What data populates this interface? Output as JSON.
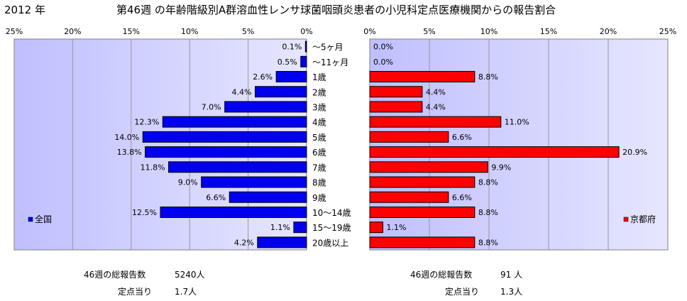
{
  "header": {
    "year": "2012 年",
    "title": "第46週 の年齢階級別A群溶血性レンサ球菌咽頭炎患者の小児科定点医療機関からの報告割合"
  },
  "chart_data": {
    "type": "bar",
    "orientation": "horizontal",
    "categories": [
      "〜5ヶ月",
      "〜11ヶ月",
      "1歳",
      "2歳",
      "3歳",
      "4歳",
      "5歳",
      "6歳",
      "7歳",
      "8歳",
      "9歳",
      "10〜14歳",
      "15〜19歳",
      "20歳以上"
    ],
    "xlim": [
      0,
      25
    ],
    "tick_labels": [
      "0%",
      "5%",
      "10%",
      "15%",
      "20%",
      "25%"
    ],
    "grid": true,
    "series": [
      {
        "name": "全国",
        "color": "#0000ee",
        "side": "left",
        "legend_position": "bottom-left",
        "values": [
          0.1,
          0.5,
          2.6,
          4.4,
          7.0,
          12.3,
          14.0,
          13.8,
          11.8,
          9.0,
          6.6,
          12.5,
          1.1,
          4.2
        ],
        "labels": [
          "0.1%",
          "0.5%",
          "2.6%",
          "4.4%",
          "7.0%",
          "12.3%",
          "14.0%",
          "13.8%",
          "11.8%",
          "9.0%",
          "6.6%",
          "12.5%",
          "1.1%",
          "4.2%"
        ]
      },
      {
        "name": "京都府",
        "color": "#ff0000",
        "side": "right",
        "legend_position": "bottom-right",
        "values": [
          0.0,
          0.0,
          8.8,
          4.4,
          4.4,
          11.0,
          6.6,
          20.9,
          9.9,
          8.8,
          6.6,
          8.8,
          1.1,
          8.8
        ],
        "labels": [
          "0.0%",
          "0.0%",
          "8.8%",
          "4.4%",
          "4.4%",
          "11.0%",
          "6.6%",
          "20.9%",
          "9.9%",
          "8.8%",
          "6.6%",
          "8.8%",
          "1.1%",
          "8.8%"
        ]
      }
    ]
  },
  "footer": {
    "left": {
      "total_label": "46週の総報告数",
      "total_value": "5240人",
      "per_label": "定点当り",
      "per_value": "1.7人"
    },
    "right": {
      "total_label": "46週の総報告数",
      "total_value": "91 人",
      "per_label": "定点当り",
      "per_value": "1.3人"
    }
  },
  "colors": {
    "plot_background": "#ccccff",
    "left_bar": "#0000ee",
    "right_bar": "#ff0000",
    "outline": "#000000"
  }
}
